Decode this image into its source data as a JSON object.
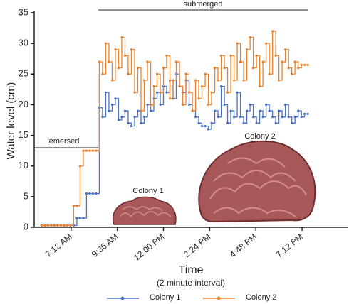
{
  "chart_data": {
    "type": "line",
    "step": true,
    "markers": true,
    "ylabel": "Water level (cm)",
    "xlabel": "Time",
    "xlabel_sub": "(2 minute interval)",
    "annotations": [
      "submerged",
      "emersed",
      "Colony 1",
      "Colony 2"
    ],
    "xlim": [
      317,
      1294
    ],
    "ylim": [
      0,
      35
    ],
    "yticks": [
      0,
      5,
      10,
      15,
      20,
      25,
      30,
      35
    ],
    "xticks": [
      {
        "value": 432,
        "label": "7:12 AM"
      },
      {
        "value": 576,
        "label": "9:36 AM"
      },
      {
        "value": 720,
        "label": "12:00 PM"
      },
      {
        "value": 864,
        "label": "2:24 PM"
      },
      {
        "value": 1008,
        "label": "4:48 PM"
      },
      {
        "value": 1152,
        "label": "7:12 PM"
      }
    ],
    "legend": "bottom",
    "x": [
      340,
      350,
      360,
      370,
      380,
      390,
      400,
      410,
      420,
      430,
      440,
      450,
      460,
      470,
      480,
      490,
      500,
      510,
      520,
      530,
      540,
      550,
      560,
      570,
      580,
      590,
      600,
      610,
      620,
      630,
      640,
      650,
      660,
      670,
      680,
      690,
      700,
      710,
      720,
      730,
      740,
      750,
      760,
      770,
      780,
      790,
      800,
      810,
      820,
      830,
      840,
      850,
      860,
      870,
      880,
      890,
      900,
      910,
      920,
      930,
      940,
      950,
      960,
      970,
      980,
      990,
      1000,
      1010,
      1020,
      1030,
      1040,
      1050,
      1060,
      1070,
      1080,
      1090,
      1100,
      1110,
      1120,
      1130,
      1140,
      1150,
      1160,
      1170
    ],
    "series": [
      {
        "name": "Colony 1",
        "color": "#4a72c4",
        "values": [
          0.3,
          0.3,
          0.3,
          0.3,
          0.3,
          0.3,
          0.3,
          0.3,
          0.3,
          0.3,
          0.3,
          1.5,
          1.5,
          1.5,
          5.5,
          5.5,
          5.5,
          5.5,
          19.5,
          18,
          22,
          19,
          20,
          21,
          17.5,
          18,
          19,
          17,
          16.5,
          18,
          19,
          17,
          18,
          20,
          19,
          21,
          22,
          20,
          23,
          22,
          24,
          21,
          25,
          23,
          22,
          24,
          20,
          19,
          18,
          17,
          16.5,
          16.5,
          16,
          17,
          19,
          18,
          23,
          20,
          17,
          19,
          18,
          22,
          18,
          17,
          19,
          20,
          18,
          17,
          19,
          18,
          20,
          19,
          18,
          17,
          19,
          18,
          20,
          18,
          17,
          18,
          19,
          18,
          18.5,
          18.5
        ]
      },
      {
        "name": "Colony 2",
        "color": "#e8822e",
        "values": [
          0.3,
          0.3,
          0.3,
          0.3,
          0.3,
          0.3,
          0.3,
          0.3,
          0.3,
          0.3,
          3.5,
          3.5,
          10,
          12.5,
          12.5,
          12.5,
          12.5,
          12.5,
          27,
          25,
          30,
          27,
          24,
          29,
          26,
          31,
          28,
          25,
          29,
          22,
          26,
          19,
          24,
          27,
          20,
          23,
          25,
          22,
          26,
          28,
          21,
          24,
          27,
          23,
          20,
          25,
          22,
          19,
          24,
          21,
          23,
          25,
          20,
          22,
          26,
          24,
          28,
          26,
          22,
          28,
          24,
          30,
          27,
          24,
          29,
          31,
          26,
          28,
          23,
          27,
          30,
          25,
          32,
          28,
          24,
          27,
          29,
          26,
          25,
          27,
          26,
          26.5,
          26.5,
          26.5
        ]
      }
    ]
  }
}
